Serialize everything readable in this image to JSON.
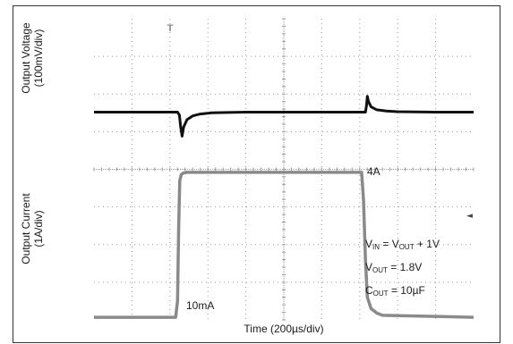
{
  "chart_data": {
    "type": "line",
    "xlabel": "Time (200µs/div)",
    "ylabel_top_line1": "Output Voltage",
    "ylabel_top_line2": "(100mV/div)",
    "ylabel_bottom_line1": "Output Current",
    "ylabel_bottom_line2": "(1A/div)",
    "x_divisions": 10,
    "y_divisions": 8,
    "series": [
      {
        "name": "",
        "color": "#111111",
        "x": [
          0,
          2.2,
          2.25,
          2.28,
          2.32,
          2.36,
          2.45,
          2.6,
          2.8,
          3.1,
          3.5,
          4,
          5,
          6,
          7,
          7.15,
          7.18,
          7.2,
          7.23,
          7.3,
          7.45,
          7.7,
          8,
          9,
          10
        ],
        "y": [
          5.52,
          5.52,
          5.44,
          5.15,
          4.88,
          5.12,
          5.32,
          5.42,
          5.47,
          5.5,
          5.51,
          5.52,
          5.52,
          5.52,
          5.52,
          5.52,
          5.7,
          5.94,
          5.8,
          5.66,
          5.58,
          5.55,
          5.53,
          5.52,
          5.52
        ]
      },
      {
        "name": "",
        "color": "#8a8a8a",
        "x": [
          0,
          2.15,
          2.2,
          2.23,
          2.26,
          2.3,
          2.35,
          2.45,
          5,
          7.05,
          7.1,
          7.15,
          7.2,
          7.3,
          7.45,
          7.6,
          10
        ],
        "y": [
          0.07,
          0.07,
          0.5,
          2.5,
          3.7,
          3.86,
          3.9,
          3.92,
          3.92,
          3.92,
          3.2,
          1.6,
          0.6,
          0.3,
          0.18,
          0.12,
          0.07
        ]
      }
    ],
    "annotations": {
      "high_current": "4A",
      "low_current": "10mA",
      "vin_line": {
        "a": "V",
        "a_sub": "IN",
        "b": " = V",
        "b_sub": "OUT",
        "c": " + 1V"
      },
      "vout_line": {
        "a": "V",
        "a_sub": "OUT",
        "c": " = 1.8V"
      },
      "cout_line": {
        "a": "C",
        "a_sub": "OUT",
        "c": " = 10µF"
      },
      "trigger_marker": "T",
      "level_marker": "◄"
    },
    "grid": "dotted"
  }
}
